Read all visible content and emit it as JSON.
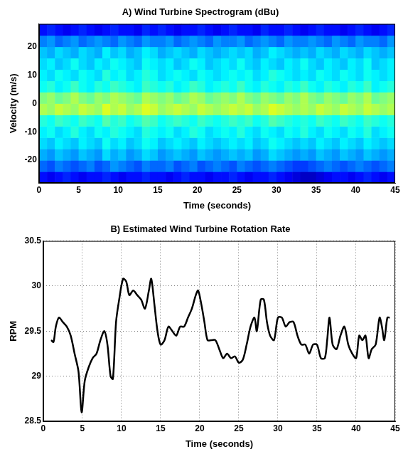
{
  "chart_data": [
    {
      "type": "heatmap",
      "title": "A) Wind Turbine Spectrogram (dBu)",
      "x_label": "Time (seconds)",
      "y_label": "Velocity (m/s)",
      "xlim": [
        0,
        45
      ],
      "xticks": [
        0,
        5,
        10,
        15,
        20,
        25,
        30,
        35,
        40,
        45
      ],
      "ylim": [
        -28,
        28
      ],
      "yticks": [
        -20,
        -10,
        0,
        10,
        20
      ],
      "grid": false,
      "x_bins": [
        0,
        1,
        2,
        3,
        4,
        5,
        6,
        7,
        8,
        9,
        10,
        11,
        12,
        13,
        14,
        15,
        16,
        17,
        18,
        19,
        20,
        21,
        22,
        23,
        24,
        25,
        26,
        27,
        28,
        29,
        30,
        31,
        32,
        33,
        34,
        35,
        36,
        37,
        38,
        39,
        40,
        41,
        42,
        43,
        44,
        45
      ],
      "y_bins": [
        -28,
        -24,
        -20,
        -16,
        -12,
        -8,
        -4,
        0,
        4,
        8,
        12,
        16,
        20,
        24,
        28
      ],
      "clim": [
        0,
        44
      ],
      "cells": [
        [
          6,
          5,
          6,
          7,
          6,
          5,
          6,
          6,
          7,
          6,
          5,
          6,
          6,
          7,
          6,
          6,
          5,
          6,
          7,
          6,
          6,
          5,
          6,
          6,
          7,
          6,
          5,
          6,
          6,
          7,
          6,
          5,
          4,
          3,
          3,
          4,
          5,
          6,
          6,
          5,
          6,
          7,
          6,
          5,
          6
        ],
        [
          10,
          9,
          11,
          10,
          9,
          10,
          11,
          9,
          10,
          12,
          11,
          10,
          9,
          11,
          10,
          10,
          11,
          9,
          10,
          11,
          9,
          10,
          11,
          10,
          9,
          11,
          10,
          9,
          10,
          11,
          10,
          9,
          8,
          8,
          9,
          10,
          11,
          10,
          9,
          10,
          11,
          10,
          9,
          10,
          11
        ],
        [
          13,
          12,
          14,
          13,
          12,
          14,
          13,
          12,
          15,
          13,
          14,
          12,
          13,
          15,
          14,
          12,
          13,
          14,
          13,
          12,
          14,
          13,
          12,
          13,
          14,
          13,
          14,
          12,
          13,
          15,
          14,
          13,
          12,
          13,
          12,
          14,
          13,
          12,
          14,
          13,
          12,
          14,
          13,
          12,
          13
        ],
        [
          15,
          14,
          16,
          15,
          14,
          16,
          15,
          14,
          17,
          15,
          16,
          14,
          15,
          17,
          16,
          14,
          15,
          16,
          15,
          14,
          16,
          15,
          14,
          15,
          16,
          15,
          16,
          14,
          15,
          17,
          16,
          15,
          14,
          15,
          14,
          16,
          15,
          14,
          16,
          15,
          14,
          16,
          15,
          14,
          15
        ],
        [
          16,
          17,
          15,
          16,
          18,
          16,
          15,
          17,
          16,
          18,
          17,
          16,
          15,
          18,
          17,
          16,
          17,
          15,
          16,
          18,
          17,
          15,
          16,
          17,
          16,
          18,
          16,
          15,
          17,
          16,
          15,
          17,
          16,
          18,
          16,
          15,
          17,
          16,
          15,
          17,
          16,
          18,
          15,
          16,
          17
        ],
        [
          18,
          17,
          19,
          18,
          17,
          19,
          18,
          17,
          20,
          18,
          19,
          17,
          18,
          20,
          19,
          17,
          18,
          19,
          18,
          17,
          19,
          18,
          17,
          18,
          19,
          18,
          19,
          17,
          18,
          20,
          19,
          18,
          17,
          18,
          17,
          19,
          18,
          17,
          19,
          18,
          17,
          19,
          18,
          17,
          18
        ],
        [
          24,
          23,
          25,
          24,
          23,
          25,
          24,
          23,
          26,
          24,
          25,
          23,
          24,
          26,
          25,
          23,
          24,
          25,
          24,
          23,
          25,
          24,
          23,
          24,
          25,
          24,
          25,
          23,
          24,
          26,
          25,
          24,
          23,
          24,
          23,
          25,
          24,
          23,
          25,
          24,
          23,
          25,
          24,
          23,
          24
        ],
        [
          22,
          23,
          21,
          22,
          24,
          22,
          21,
          23,
          22,
          24,
          23,
          22,
          21,
          24,
          23,
          22,
          23,
          21,
          22,
          24,
          23,
          21,
          22,
          23,
          22,
          24,
          22,
          21,
          23,
          22,
          21,
          23,
          22,
          24,
          22,
          21,
          23,
          22,
          21,
          23,
          22,
          24,
          21,
          22,
          23
        ],
        [
          17,
          18,
          16,
          17,
          19,
          17,
          16,
          18,
          17,
          19,
          18,
          17,
          16,
          19,
          18,
          17,
          18,
          16,
          17,
          19,
          18,
          16,
          17,
          18,
          17,
          19,
          17,
          16,
          18,
          17,
          16,
          18,
          17,
          19,
          17,
          16,
          18,
          17,
          16,
          18,
          17,
          19,
          16,
          17,
          18
        ],
        [
          16,
          15,
          17,
          16,
          15,
          17,
          16,
          15,
          18,
          16,
          17,
          15,
          16,
          18,
          17,
          15,
          16,
          17,
          16,
          15,
          17,
          16,
          15,
          16,
          17,
          16,
          17,
          15,
          16,
          18,
          17,
          16,
          15,
          16,
          15,
          17,
          16,
          15,
          17,
          16,
          15,
          17,
          16,
          15,
          16
        ],
        [
          15,
          16,
          14,
          15,
          17,
          15,
          14,
          16,
          15,
          17,
          16,
          15,
          14,
          17,
          16,
          15,
          16,
          14,
          15,
          17,
          16,
          14,
          15,
          16,
          15,
          17,
          15,
          14,
          16,
          15,
          14,
          16,
          15,
          17,
          15,
          14,
          16,
          15,
          14,
          16,
          15,
          17,
          14,
          15,
          16
        ],
        [
          14,
          13,
          15,
          14,
          13,
          15,
          14,
          13,
          16,
          14,
          15,
          13,
          14,
          16,
          15,
          13,
          14,
          15,
          14,
          13,
          15,
          14,
          13,
          14,
          15,
          14,
          15,
          13,
          14,
          16,
          15,
          14,
          13,
          14,
          13,
          15,
          14,
          13,
          15,
          14,
          13,
          15,
          14,
          13,
          14
        ],
        [
          11,
          12,
          10,
          11,
          12,
          10,
          11,
          12,
          11,
          10,
          12,
          11,
          10,
          12,
          11,
          11,
          12,
          10,
          11,
          12,
          11,
          10,
          12,
          11,
          11,
          12,
          10,
          11,
          12,
          11,
          10,
          12,
          11,
          11,
          12,
          11,
          10,
          12,
          11,
          10,
          12,
          11,
          11,
          10,
          12
        ],
        [
          6,
          7,
          6,
          5,
          6,
          7,
          6,
          5,
          6,
          7,
          6,
          6,
          5,
          7,
          6,
          7,
          6,
          5,
          6,
          6,
          7,
          6,
          5,
          6,
          7,
          6,
          6,
          5,
          7,
          6,
          6,
          7,
          6,
          5,
          6,
          7,
          6,
          6,
          5,
          6,
          7,
          6,
          5,
          6,
          7
        ]
      ]
    },
    {
      "type": "line",
      "title": "B) Estimated Wind Turbine Rotation Rate",
      "x_label": "Time (seconds)",
      "y_label": "RPM",
      "xlim": [
        0,
        45
      ],
      "xticks": [
        0,
        5,
        10,
        15,
        20,
        25,
        30,
        35,
        40,
        45
      ],
      "ylim": [
        28.5,
        30.5
      ],
      "yticks": [
        28.5,
        29,
        29.5,
        30,
        30.5
      ],
      "grid": true,
      "color": "#000000",
      "line_style": "solid",
      "x": [
        1,
        1.3,
        1.6,
        2,
        2.5,
        3,
        3.5,
        4,
        4.5,
        4.9,
        5.3,
        5.8,
        6.3,
        6.8,
        7.3,
        7.8,
        8.2,
        8.6,
        8.9,
        9.3,
        9.7,
        10.2,
        10.6,
        11,
        11.5,
        12,
        12.5,
        13,
        13.5,
        13.8,
        14.2,
        14.6,
        15,
        15.5,
        16,
        16.5,
        17,
        17.5,
        18,
        18.5,
        19,
        19.5,
        19.8,
        20.2,
        20.6,
        21,
        21.5,
        22,
        22.5,
        23,
        23.5,
        24,
        24.5,
        25,
        25.5,
        26,
        26.5,
        27,
        27.3,
        27.8,
        28.2,
        28.6,
        29,
        29.5,
        30,
        30.5,
        31,
        31.5,
        32,
        32.5,
        33,
        33.5,
        34,
        34.5,
        35,
        35.5,
        36,
        36.3,
        36.6,
        37,
        37.5,
        38,
        38.5,
        39,
        39.5,
        40,
        40.4,
        40.8,
        41.2,
        41.6,
        42,
        42.5,
        43,
        43.3,
        43.6,
        44,
        44.3
      ],
      "values": [
        29.4,
        29.38,
        29.55,
        29.65,
        29.6,
        29.55,
        29.45,
        29.25,
        29.05,
        28.6,
        28.95,
        29.1,
        29.2,
        29.25,
        29.4,
        29.5,
        29.35,
        29.0,
        28.97,
        29.6,
        29.85,
        30.08,
        30.05,
        29.9,
        29.95,
        29.9,
        29.85,
        29.75,
        29.95,
        30.08,
        29.8,
        29.5,
        29.35,
        29.4,
        29.55,
        29.5,
        29.45,
        29.55,
        29.55,
        29.65,
        29.75,
        29.9,
        29.95,
        29.8,
        29.6,
        29.4,
        29.4,
        29.4,
        29.3,
        29.2,
        29.25,
        29.2,
        29.22,
        29.15,
        29.18,
        29.35,
        29.55,
        29.65,
        29.5,
        29.85,
        29.85,
        29.6,
        29.45,
        29.4,
        29.65,
        29.65,
        29.55,
        29.6,
        29.6,
        29.45,
        29.35,
        29.35,
        29.25,
        29.35,
        29.35,
        29.2,
        29.2,
        29.4,
        29.65,
        29.35,
        29.3,
        29.45,
        29.55,
        29.35,
        29.25,
        29.2,
        29.45,
        29.4,
        29.45,
        29.2,
        29.3,
        29.35,
        29.65,
        29.55,
        29.4,
        29.65,
        29.65
      ]
    }
  ]
}
